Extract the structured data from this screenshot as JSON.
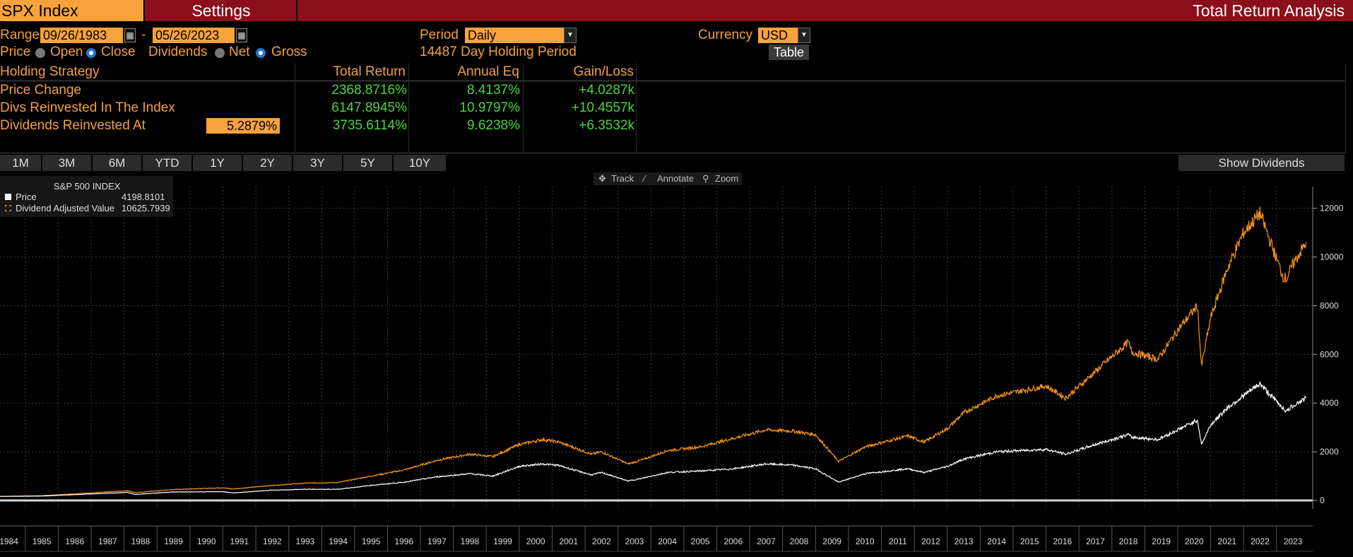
{
  "header": {
    "ticker": "SPX Index",
    "settings_tab": "Settings",
    "title": "Total Return Analysis"
  },
  "controls": {
    "range_label": "Range",
    "start_date": "09/26/1983",
    "range_sep": "-",
    "end_date": "05/26/2023",
    "period_label": "Period",
    "period_value": "Daily",
    "currency_label": "Currency",
    "currency_value": "USD",
    "price_label": "Price",
    "open_label": "Open",
    "close_label": "Close",
    "dividends_label": "Dividends",
    "net_label": "Net",
    "gross_label": "Gross",
    "holding_period": "14487 Day Holding Period",
    "table_button": "Table",
    "price_selected": "Close",
    "dividends_selected": "Gross"
  },
  "table": {
    "headers": [
      "Holding Strategy",
      "Total Return",
      "Annual Eq",
      "Gain/Loss"
    ],
    "rows": [
      {
        "strategy": "Price Change",
        "total_return": "2368.8716%",
        "annual_eq": "8.4137%",
        "gain_loss": "+4.0287k"
      },
      {
        "strategy": "Divs Reinvested In The Index",
        "total_return": "6147.8945%",
        "annual_eq": "10.9797%",
        "gain_loss": "+10.4557k"
      },
      {
        "strategy": "Dividends Reinvested At",
        "rate": "5.2879%",
        "total_return": "3735.6114%",
        "annual_eq": "9.6238%",
        "gain_loss": "+6.3532k"
      }
    ]
  },
  "range_buttons": [
    "1M",
    "3M",
    "6M",
    "YTD",
    "1Y",
    "2Y",
    "3Y",
    "5Y",
    "10Y"
  ],
  "show_dividends": "Show Dividends",
  "tools": {
    "track": "Track",
    "annotate": "Annotate",
    "zoom": "Zoom"
  },
  "colors": {
    "price": "#ffffff",
    "dividend": "#f7931e",
    "header_bg": "#8b0f1a",
    "accent": "#f7a23b",
    "positive": "#4cd340"
  },
  "chart_data": {
    "type": "line",
    "title": "S&P 500 INDEX",
    "x_ticks": [
      "1984",
      "1985",
      "1986",
      "1987",
      "1988",
      "1989",
      "1990",
      "1991",
      "1992",
      "1993",
      "1994",
      "1995",
      "1996",
      "1997",
      "1998",
      "1999",
      "2000",
      "2001",
      "2002",
      "2003",
      "2004",
      "2005",
      "2006",
      "2007",
      "2008",
      "2009",
      "2010",
      "2011",
      "2012",
      "2013",
      "2014",
      "2015",
      "2016",
      "2017",
      "2018",
      "2019",
      "2020",
      "2021",
      "2022",
      "2023"
    ],
    "y_ticks": [
      0,
      2000,
      4000,
      6000,
      8000,
      10000,
      12000
    ],
    "ylim": [
      0,
      12600
    ],
    "xlim": [
      1983.73,
      2023.6
    ],
    "grid": true,
    "legend_position": "top-left",
    "series": [
      {
        "name": "Price",
        "last_value": "4198.8101",
        "x": [
          1983.73,
          1985,
          1986,
          1987.6,
          1987.85,
          1989,
          1990.5,
          1990.8,
          1992,
          1993,
          1994,
          1995,
          1996,
          1997,
          1998,
          1998.7,
          1999.5,
          2000.2,
          2000.7,
          2001.3,
          2001.7,
          2002,
          2002.8,
          2003.2,
          2004,
          2005,
          2006,
          2007,
          2007.8,
          2008.5,
          2009.2,
          2010,
          2011.3,
          2011.8,
          2012.5,
          2013,
          2014,
          2015.5,
          2016.1,
          2017,
          2018,
          2018.1,
          2018.9,
          2019.5,
          2020.1,
          2020.22,
          2020.5,
          2021,
          2021.5,
          2022.0,
          2022.4,
          2022.7,
          2022.8,
          2023.0,
          2023.4
        ],
        "values": [
          166,
          180,
          240,
          330,
          250,
          350,
          360,
          310,
          420,
          460,
          460,
          620,
          750,
          970,
          1100,
          1000,
          1400,
          1500,
          1440,
          1200,
          1050,
          1150,
          800,
          900,
          1150,
          1210,
          1300,
          1500,
          1450,
          1300,
          750,
          1100,
          1300,
          1150,
          1400,
          1700,
          2000,
          2100,
          1900,
          2300,
          2700,
          2600,
          2500,
          2900,
          3300,
          2300,
          3100,
          3800,
          4300,
          4800,
          4200,
          3800,
          3650,
          3900,
          4200
        ]
      },
      {
        "name": "Dividend Adjusted Value",
        "last_value": "10625.7939",
        "x": [
          1983.73,
          1985,
          1986,
          1987.6,
          1987.85,
          1989,
          1990.5,
          1990.8,
          1992,
          1993,
          1994,
          1995,
          1996,
          1997,
          1998,
          1998.7,
          1999.5,
          2000.2,
          2000.7,
          2001.3,
          2001.7,
          2002,
          2002.8,
          2003.2,
          2004,
          2005,
          2006,
          2007,
          2007.8,
          2008.5,
          2009.2,
          2010,
          2011.3,
          2011.8,
          2012.5,
          2013,
          2014,
          2015.5,
          2016.1,
          2017,
          2018,
          2018.1,
          2018.9,
          2019.5,
          2020.1,
          2020.22,
          2020.5,
          2021,
          2021.5,
          2022.0,
          2022.4,
          2022.7,
          2022.8,
          2023.0,
          2023.4
        ],
        "values": [
          166,
          195,
          270,
          400,
          320,
          450,
          520,
          470,
          620,
          710,
          740,
          1000,
          1250,
          1650,
          1900,
          1800,
          2300,
          2500,
          2400,
          2100,
          1900,
          2000,
          1500,
          1650,
          2050,
          2200,
          2550,
          2900,
          2850,
          2700,
          1600,
          2200,
          2650,
          2400,
          2950,
          3600,
          4300,
          4700,
          4200,
          5300,
          6500,
          6100,
          5800,
          7000,
          8000,
          5500,
          7500,
          9500,
          11000,
          11800,
          10300,
          9200,
          9100,
          9700,
          10600
        ]
      }
    ]
  }
}
